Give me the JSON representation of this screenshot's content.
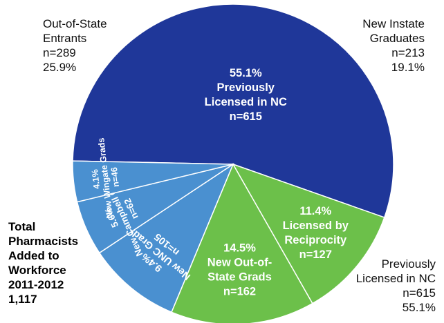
{
  "chart_data": {
    "type": "pie",
    "slices": [
      {
        "key": "prev_nc",
        "percent_label": "55.1%",
        "lines": [
          "Previously",
          "Licensed in NC"
        ],
        "n_label": "n=615",
        "value": 615,
        "color": "#1f3799",
        "text_color": "#ffffff"
      },
      {
        "key": "reciprocity",
        "percent_label": "11.4%",
        "lines": [
          "Licensed by",
          "Reciprocity"
        ],
        "n_label": "n=127",
        "value": 127,
        "color": "#6cc04a",
        "text_color": "#ffffff"
      },
      {
        "key": "new_out_state",
        "percent_label": "14.5%",
        "lines": [
          "New Out-of-",
          "State Grads"
        ],
        "n_label": "n=162",
        "value": 162,
        "color": "#6cc04a",
        "text_color": "#ffffff"
      },
      {
        "key": "unc",
        "percent_label": "9.4%",
        "lines": [
          "New UNC Grads"
        ],
        "n_label": "n=105",
        "value": 105,
        "color": "#4a90d0",
        "text_color": "#ffffff"
      },
      {
        "key": "campbell",
        "percent_label": "5.6%",
        "lines": [
          "New Campbell Grads"
        ],
        "n_label": "n=62",
        "value": 62,
        "color": "#4a90d0",
        "text_color": "#ffffff"
      },
      {
        "key": "wingate",
        "percent_label": "4.1%",
        "lines": [
          "New Wingate Grads"
        ],
        "n_label": "n=46",
        "value": 46,
        "color": "#4a90d0",
        "text_color": "#ffffff"
      }
    ],
    "group_labels": {
      "out_of_state": {
        "lines": [
          "Out-of-State",
          "Entrants"
        ],
        "n": "n=289",
        "pct": "25.9%"
      },
      "new_instate": {
        "lines": [
          "New Instate",
          "Graduates"
        ],
        "n": "n=213",
        "pct": "19.1%"
      },
      "previously": {
        "lines": [
          "Previously",
          "Licensed in NC"
        ],
        "n": "n=615",
        "pct": "55.1%"
      }
    },
    "total": {
      "lines": [
        "Total",
        "Pharmacists",
        "Added to",
        "Workforce",
        "2011-2012"
      ],
      "value": "1,117"
    },
    "outline_color": "#ffffff"
  }
}
